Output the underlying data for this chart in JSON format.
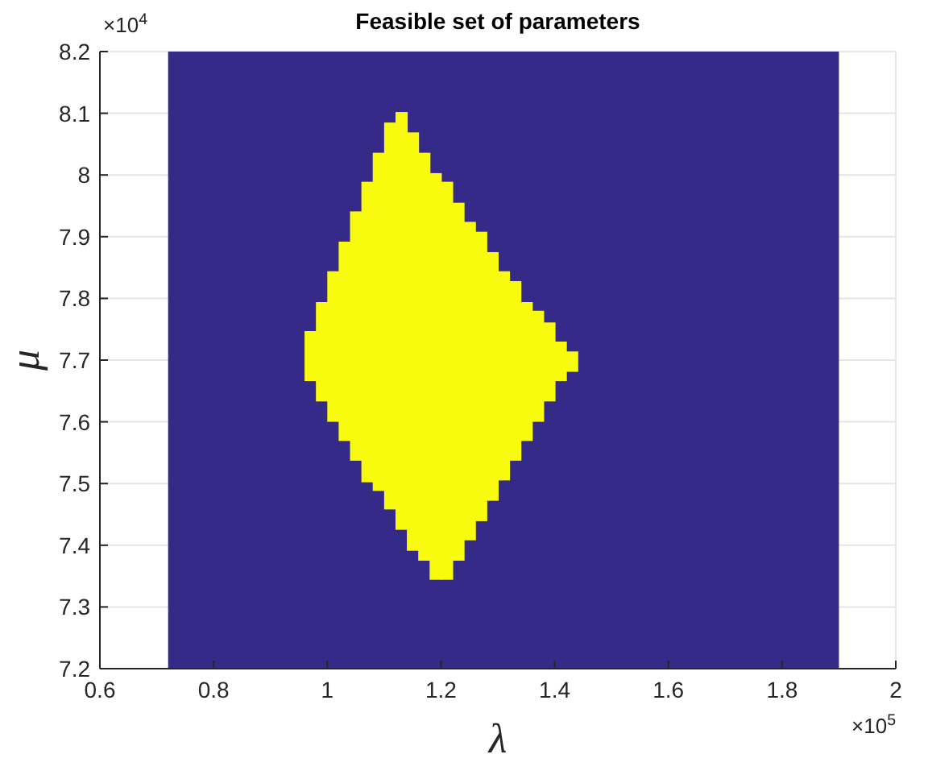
{
  "chart_data": {
    "type": "bar",
    "title": "Feasible set of parameters",
    "xlabel": "λ",
    "ylabel": "μ",
    "x": [
      0.97,
      0.99,
      1.01,
      1.03,
      1.05,
      1.07,
      1.09,
      1.11,
      1.13,
      1.15,
      1.17,
      1.19,
      1.21,
      1.23,
      1.25,
      1.27,
      1.29,
      1.31,
      1.33,
      1.35,
      1.37,
      1.39,
      1.41,
      1.43
    ],
    "base": [
      7.666,
      7.633,
      7.6,
      7.569,
      7.537,
      7.502,
      7.488,
      7.458,
      7.425,
      7.391,
      7.375,
      7.344,
      7.344,
      7.375,
      7.408,
      7.439,
      7.472,
      7.505,
      7.537,
      7.569,
      7.6,
      7.633,
      7.666,
      7.681
    ],
    "values": [
      0.081,
      0.161,
      0.244,
      0.323,
      0.404,
      0.487,
      0.548,
      0.627,
      0.677,
      0.678,
      0.661,
      0.659,
      0.645,
      0.58,
      0.516,
      0.469,
      0.403,
      0.339,
      0.291,
      0.225,
      0.18,
      0.128,
      0.064,
      0.033
    ],
    "color": "#f9fb0e",
    "bands": [
      {
        "axis": "x",
        "from": 0.72,
        "to": 1.9,
        "color": "#352a87"
      }
    ],
    "xlim": [
      0.6,
      2
    ],
    "xticks": [
      0.6,
      0.8,
      1,
      1.2,
      1.4,
      1.6,
      1.8,
      2
    ],
    "ylim": [
      7.2,
      8.2
    ],
    "yticks": [
      7.2,
      7.3,
      7.4,
      7.5,
      7.6,
      7.7,
      7.8,
      7.9,
      8,
      8.1,
      8.2
    ],
    "annotations": [
      "×10$^{4}$",
      "×10$^{5}$"
    ],
    "grid": true
  }
}
